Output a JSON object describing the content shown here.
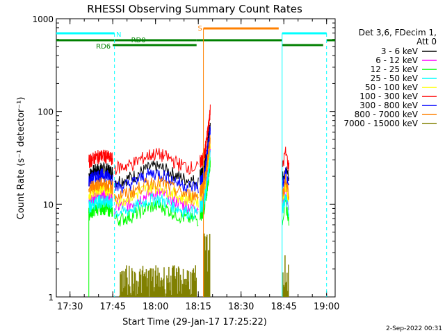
{
  "chart_data": {
    "type": "line",
    "title": "RHESSI Observing Summary Count Rates",
    "xlabel": "Start Time (29-Jan-17 17:25:22)",
    "ylabel": "Count Rate (s⁻¹ detector⁻¹)",
    "y_scale": "log",
    "ylim": [
      1,
      1000
    ],
    "xlim_minutes": [
      17.42,
      19.05
    ],
    "x_ticks": [
      "17:30",
      "17:45",
      "18:00",
      "18:15",
      "18:30",
      "18:45",
      "19:00"
    ],
    "x_tick_hours": [
      17.5,
      17.75,
      18.0,
      18.25,
      18.5,
      18.75,
      19.0
    ],
    "y_ticks": [
      "1",
      "10",
      "100",
      "1000"
    ],
    "y_tick_values": [
      1,
      10,
      100,
      1000
    ],
    "legend_header": [
      "Det 3,6, FDecim 1,",
      "Att 0"
    ],
    "legend_position": "right",
    "series": [
      {
        "name": "3 - 6 keV",
        "color": "#000000",
        "base": 21
      },
      {
        "name": "6 - 12 keV",
        "color": "#ff00ff",
        "base": 11
      },
      {
        "name": "12 - 25 keV",
        "color": "#00ff00",
        "base": 8
      },
      {
        "name": "25 - 50 keV",
        "color": "#00ffff",
        "base": 9.5
      },
      {
        "name": "50 - 100 keV",
        "color": "#ffff00",
        "base": 13
      },
      {
        "name": "100 - 300 keV",
        "color": "#ff0000",
        "base": 29
      },
      {
        "name": "300 - 800 keV",
        "color": "#0000ff",
        "base": 18
      },
      {
        "name": "800 - 7000 keV",
        "color": "#ff8000",
        "base": 14.5
      },
      {
        "name": "7000 - 15000 keV",
        "color": "#808000",
        "base": 1
      }
    ],
    "annotations": [
      {
        "text": "N",
        "color": "#00ffff"
      },
      {
        "text": "RD0",
        "color": "#008000"
      },
      {
        "text": "RD6",
        "color": "#008000"
      },
      {
        "text": "S",
        "color": "#ff8000"
      }
    ],
    "footer": "2-Sep-2022 00:31"
  }
}
